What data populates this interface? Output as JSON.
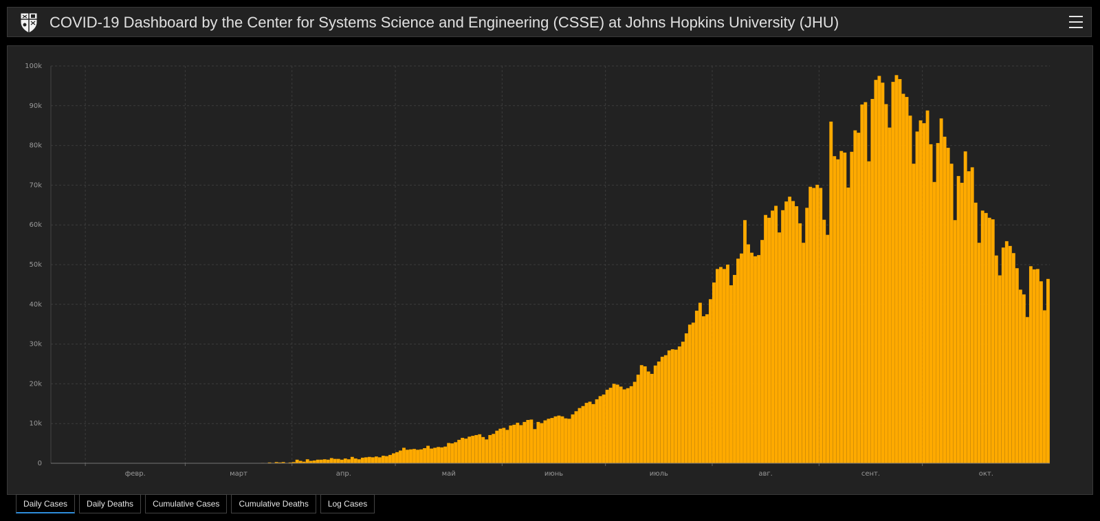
{
  "header": {
    "title": "COVID-19 Dashboard by the Center for Systems Science and Engineering (CSSE) at Johns Hopkins University (JHU)",
    "logo_icon": "jhu-shield-icon",
    "menu_icon": "hamburger-menu-icon"
  },
  "tabs": [
    {
      "label": "Daily Cases",
      "active": true
    },
    {
      "label": "Daily Deaths",
      "active": false
    },
    {
      "label": "Cumulative Cases",
      "active": false
    },
    {
      "label": "Cumulative Deaths",
      "active": false
    },
    {
      "label": "Log Cases",
      "active": false
    }
  ],
  "colors": {
    "bar": "#ffaa00",
    "background": "#222222",
    "grid": "#3c3c3c",
    "tab_active_accent": "#2e8ddb"
  },
  "chart_data": {
    "type": "bar",
    "title": "",
    "xlabel": "",
    "ylabel": "",
    "ylim": [
      0,
      100000
    ],
    "grid": true,
    "y_ticks": [
      {
        "value": 0,
        "label": "0"
      },
      {
        "value": 10000,
        "label": "10k"
      },
      {
        "value": 20000,
        "label": "20k"
      },
      {
        "value": 30000,
        "label": "30k"
      },
      {
        "value": 40000,
        "label": "40k"
      },
      {
        "value": 50000,
        "label": "50k"
      },
      {
        "value": 60000,
        "label": "60k"
      },
      {
        "value": 70000,
        "label": "70k"
      },
      {
        "value": 80000,
        "label": "80k"
      },
      {
        "value": 90000,
        "label": "90k"
      },
      {
        "value": 100000,
        "label": "100k"
      }
    ],
    "x_start": "2020-01-22",
    "x_ticks": [
      {
        "date": "2020-02-01",
        "label": "февр."
      },
      {
        "date": "2020-03-01",
        "label": "март"
      },
      {
        "date": "2020-04-01",
        "label": "апр."
      },
      {
        "date": "2020-05-01",
        "label": "май"
      },
      {
        "date": "2020-06-01",
        "label": "июнь"
      },
      {
        "date": "2020-07-01",
        "label": "июль"
      },
      {
        "date": "2020-08-01",
        "label": "авг."
      },
      {
        "date": "2020-09-01",
        "label": "сент."
      },
      {
        "date": "2020-10-01",
        "label": "окт."
      }
    ],
    "values": [
      0,
      0,
      0,
      0,
      0,
      0,
      0,
      0,
      0,
      0,
      0,
      0,
      0,
      0,
      0,
      0,
      0,
      0,
      0,
      0,
      0,
      0,
      0,
      0,
      0,
      0,
      0,
      0,
      0,
      0,
      0,
      0,
      0,
      0,
      0,
      0,
      0,
      0,
      0,
      0,
      0,
      0,
      0,
      0,
      0,
      0,
      0,
      0,
      0,
      0,
      0,
      0,
      0,
      0,
      0,
      0,
      0,
      0,
      0,
      0,
      0,
      100,
      50,
      200,
      100,
      300,
      200,
      300,
      100,
      200,
      300,
      900,
      600,
      400,
      1000,
      600,
      700,
      900,
      900,
      1000,
      900,
      1300,
      1100,
      1100,
      900,
      1200,
      1000,
      1600,
      1200,
      1000,
      1400,
      1500,
      1600,
      1500,
      1700,
      1500,
      1900,
      1800,
      2100,
      2500,
      2800,
      3200,
      3900,
      3400,
      3500,
      3600,
      3400,
      3500,
      3800,
      4400,
      3700,
      3900,
      4100,
      4000,
      4200,
      5100,
      5000,
      5300,
      5900,
      6400,
      6200,
      6700,
      6900,
      7100,
      7300,
      6600,
      6000,
      7100,
      7400,
      8200,
      8700,
      8900,
      8400,
      9500,
      9700,
      10200,
      9600,
      10400,
      10900,
      11000,
      8600,
      10400,
      10100,
      10800,
      11200,
      11400,
      11800,
      12000,
      11800,
      11300,
      11200,
      12300,
      13100,
      13900,
      14400,
      15200,
      15500,
      14900,
      16100,
      16900,
      17300,
      18500,
      19000,
      20000,
      19800,
      19300,
      18600,
      18900,
      19400,
      20500,
      22300,
      24700,
      24400,
      23100,
      22500,
      24600,
      25600,
      26800,
      27200,
      28400,
      28700,
      28600,
      29400,
      30600,
      32700,
      34900,
      35400,
      38400,
      40400,
      37000,
      37500,
      41300,
      45500,
      48900,
      49400,
      48900,
      50000,
      44800,
      47400,
      51500,
      52800,
      61200,
      55100,
      53000,
      52100,
      52400,
      56200,
      62500,
      61800,
      63600,
      64800,
      58100,
      63700,
      65900,
      67100,
      66000,
      64700,
      60400,
      55500,
      64300,
      69600,
      69300,
      70100,
      69300,
      61300,
      57500,
      86000,
      77300,
      76500,
      78600,
      78200,
      69400,
      78400,
      83800,
      83200,
      90300,
      90900,
      76000,
      91700,
      96500,
      97500,
      95800,
      90400,
      84500,
      96000,
      97700,
      96700,
      93000,
      92200,
      87500,
      75400,
      83500,
      86300,
      85600,
      88800,
      80300,
      70800,
      80600,
      86800,
      82200,
      79400,
      75400,
      61200,
      72300,
      70600,
      78500,
      73500,
      74500,
      65600,
      55500,
      63600,
      63000,
      61800,
      61400,
      52300,
      47300,
      54300,
      55900,
      54700,
      52900,
      49100,
      43700,
      42500,
      36800,
      49600,
      48800,
      48900,
      45800,
      38500,
      46400
    ]
  }
}
